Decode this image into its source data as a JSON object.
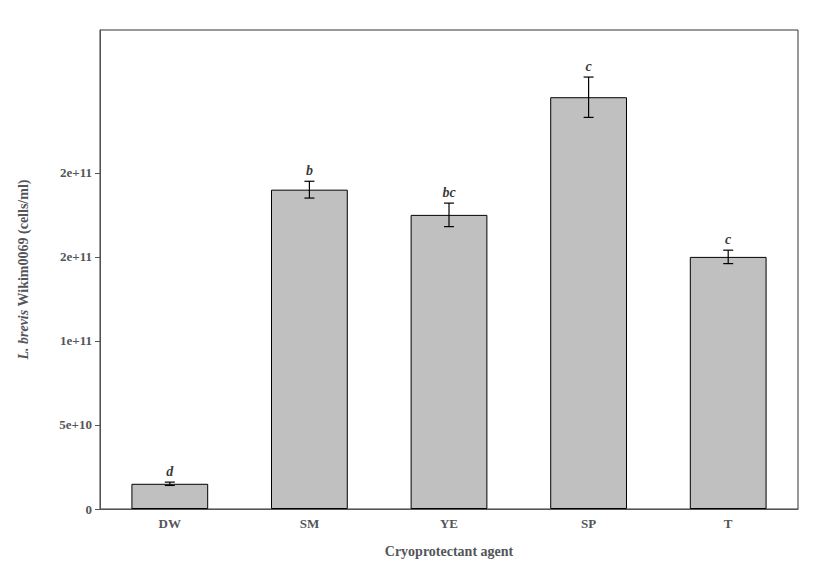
{
  "chart_data": {
    "type": "bar",
    "xlabel": "Cryoprotectant agent",
    "ylabel": "L. brevis Wikim0069 (cells/ml)",
    "categories": [
      "DW",
      "SM",
      "YE",
      "SP",
      "T"
    ],
    "values": [
      15000000000.0,
      190000000000.0,
      175000000000.0,
      245000000000.0,
      150000000000.0
    ],
    "errors": [
      1000000000.0,
      5000000000.0,
      7000000000.0,
      12000000000.0,
      4000000000.0
    ],
    "annotations": [
      "d",
      "b",
      "bc",
      "c",
      "c"
    ],
    "color": "#c0c0c0",
    "ylim": [
      0,
      285000000000.0
    ],
    "yticks": [
      0,
      {
        "value": 50000000000.0,
        "label": "5e+10"
      },
      {
        "value": 100000000000.0,
        "label": "1e+11"
      },
      {
        "value": 150000000000.0,
        "label": "2e+11"
      },
      {
        "value": 200000000000.0,
        "label": "2e+11"
      }
    ],
    "grid": false
  }
}
